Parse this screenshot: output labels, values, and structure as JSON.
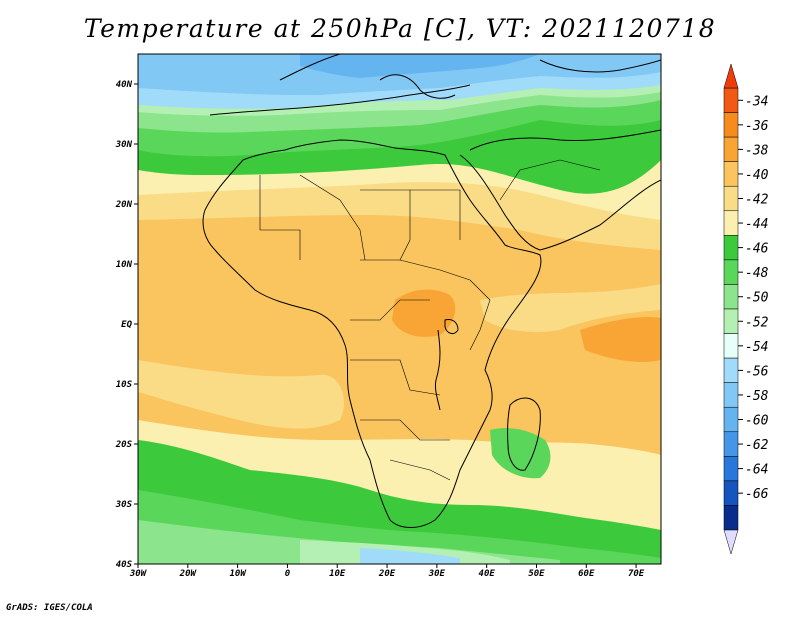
{
  "title": "Temperature at 250hPa [C], VT: 2021120718",
  "credit": "GrADS: IGES/COLA",
  "map": {
    "lon_range": [
      -30,
      75
    ],
    "lat_range": [
      -40,
      45
    ],
    "x_ticks": [
      "30W",
      "20W",
      "10W",
      "0",
      "10E",
      "20E",
      "30E",
      "40E",
      "50E",
      "60E",
      "70E"
    ],
    "y_ticks": [
      "40N",
      "30N",
      "20N",
      "10N",
      "EQ",
      "10S",
      "20S",
      "30S",
      "40S"
    ]
  },
  "colorbar": {
    "labels": [
      "-34",
      "-36",
      "-38",
      "-40",
      "-42",
      "-44",
      "-46",
      "-48",
      "-50",
      "-52",
      "-54",
      "-56",
      "-58",
      "-60",
      "-62",
      "-64",
      "-66"
    ],
    "colors": [
      "#f05a14",
      "#f78c1e",
      "#f9a536",
      "#fac45e",
      "#fadc87",
      "#fbf0b0",
      "#3cca3c",
      "#5ad75a",
      "#8ce48c",
      "#b4f0b4",
      "#e6fff8",
      "#a0dcfa",
      "#82c8f5",
      "#64b4f0",
      "#4696e8",
      "#2878dc",
      "#1456be",
      "#0a2d8c"
    ],
    "top_arrow_color": "#f03c0a",
    "bottom_arrow_color": "#e0dcff"
  }
}
